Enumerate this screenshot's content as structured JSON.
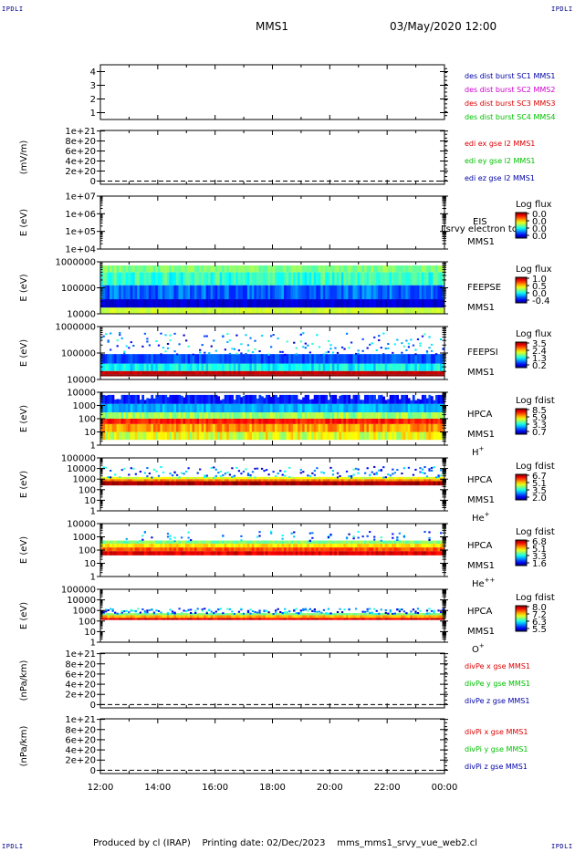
{
  "header": {
    "corner_label": "IPDLI",
    "mission": "MMS1",
    "datetime": "03/May/2020 12:00"
  },
  "footer": {
    "produced_by": "Produced by cl (IRAP)",
    "printing_date": "Printing date: 02/Dec/2023",
    "script_name": "mms_mms1_srvy_vue_web2.cl"
  },
  "colors": {
    "red": "#dd0000",
    "green": "#00c000",
    "blue": "#0000aa",
    "magenta": "#cc00cc"
  },
  "chart_data": [
    {
      "type": "line",
      "panel": "des-dist-burst",
      "ylabel": "",
      "ylim": [
        0.5,
        4.5
      ],
      "y_ticks": [
        "1",
        "2",
        "3",
        "4"
      ],
      "legend": [
        {
          "text": "des dist burst SC1 MMS1",
          "color": "#0000aa"
        },
        {
          "text": "des dist burst SC2 MMS2",
          "color": "#cc00cc"
        },
        {
          "text": "des dist burst SC3 MMS3",
          "color": "#dd0000"
        },
        {
          "text": "des dist burst SC4 MMS4",
          "color": "#00c000"
        }
      ]
    },
    {
      "type": "line",
      "panel": "edi-e-gse",
      "ylabel": "(mV/m)",
      "y_ticks": [
        "0",
        "2e+20",
        "4e+20",
        "6e+20",
        "8e+20",
        "1e+21"
      ],
      "zero_line": true,
      "legend": [
        {
          "text": "edi ex gse l2 MMS1",
          "color": "#dd0000"
        },
        {
          "text": "edi ey gse l2 MMS1",
          "color": "#00c000"
        },
        {
          "text": "edi ez gse l2 MMS1",
          "color": "#0000aa"
        }
      ]
    },
    {
      "type": "heatmap",
      "panel": "eis",
      "ylabel": "E (eV)",
      "scale": "log",
      "ylim": [
        10000,
        10000000
      ],
      "y_ticks": [
        "1e+04",
        "1e+05",
        "1e+06",
        "1e+07"
      ],
      "instrument": "EIS",
      "spacecraft": "MMS1",
      "overlay_text": "Lsrvy electron to",
      "colorbar_title": "Log flux",
      "colorbar_ticks": [
        "0.0",
        "0.0",
        "0.0",
        "0.0"
      ],
      "filled": false
    },
    {
      "type": "heatmap",
      "panel": "feepse",
      "ylabel": "E (eV)",
      "scale": "log",
      "ylim": [
        10000,
        1000000
      ],
      "y_ticks": [
        "10000",
        "100000",
        "1000000"
      ],
      "instrument": "FEEPSE",
      "spacecraft": "MMS1",
      "colorbar_title": "Log flux",
      "colorbar_ticks": [
        "1.0",
        "0.5",
        "0.0",
        "-0.4"
      ],
      "filled": true
    },
    {
      "type": "heatmap",
      "panel": "feepsi",
      "ylabel": "E (eV)",
      "scale": "log",
      "ylim": [
        10000,
        1000000
      ],
      "y_ticks": [
        "10000",
        "100000",
        "1000000"
      ],
      "instrument": "FEEPSI",
      "spacecraft": "MMS1",
      "colorbar_title": "Log flux",
      "colorbar_ticks": [
        "3.5",
        "2.4",
        "1.3",
        "0.2"
      ],
      "filled": true
    },
    {
      "type": "heatmap",
      "panel": "hpca-h",
      "ylabel": "E (eV)",
      "scale": "log",
      "ylim": [
        1,
        10000
      ],
      "y_ticks": [
        "1",
        "10",
        "100",
        "1000",
        "10000"
      ],
      "instrument": "HPCA",
      "spacecraft": "MMS1",
      "species": "H",
      "species_sup": "+",
      "colorbar_title": "Log fdist",
      "colorbar_ticks": [
        "8.5",
        "5.9",
        "3.3",
        "0.7"
      ],
      "filled": true
    },
    {
      "type": "heatmap",
      "panel": "hpca-he",
      "ylabel": "E (eV)",
      "scale": "log",
      "ylim": [
        1,
        100000
      ],
      "y_ticks": [
        "1",
        "10",
        "100",
        "1000",
        "10000",
        "100000"
      ],
      "instrument": "HPCA",
      "spacecraft": "MMS1",
      "species": "He",
      "species_sup": "+",
      "colorbar_title": "Log fdist",
      "colorbar_ticks": [
        "6.7",
        "5.1",
        "3.5",
        "2.0"
      ],
      "filled": true
    },
    {
      "type": "heatmap",
      "panel": "hpca-hepp",
      "ylabel": "E (eV)",
      "scale": "log",
      "ylim": [
        1,
        10000
      ],
      "y_ticks": [
        "1",
        "10",
        "100",
        "1000",
        "10000"
      ],
      "instrument": "HPCA",
      "spacecraft": "MMS1",
      "species": "He",
      "species_sup": "++",
      "colorbar_title": "Log fdist",
      "colorbar_ticks": [
        "6.8",
        "5.1",
        "3.3",
        "1.6"
      ],
      "filled": true
    },
    {
      "type": "heatmap",
      "panel": "hpca-o",
      "ylabel": "E (eV)",
      "scale": "log",
      "ylim": [
        1,
        100000
      ],
      "y_ticks": [
        "1",
        "10",
        "100",
        "1000",
        "10000",
        "100000"
      ],
      "instrument": "HPCA",
      "spacecraft": "MMS1",
      "species": "O",
      "species_sup": "+",
      "colorbar_title": "Log fdist",
      "colorbar_ticks": [
        "8.0",
        "7.2",
        "6.3",
        "5.5"
      ],
      "filled": true
    },
    {
      "type": "line",
      "panel": "divpe",
      "ylabel": "(nPa/km)",
      "y_ticks": [
        "0",
        "2e+20",
        "4e+20",
        "6e+20",
        "8e+20",
        "1e+21"
      ],
      "zero_line": true,
      "legend": [
        {
          "text": "divPe x gse MMS1",
          "color": "#dd0000"
        },
        {
          "text": "divPe y gse MMS1",
          "color": "#00c000"
        },
        {
          "text": "divPe z gse MMS1",
          "color": "#0000aa"
        }
      ]
    },
    {
      "type": "line",
      "panel": "divpi",
      "ylabel": "(nPa/km)",
      "y_ticks": [
        "0",
        "2e+20",
        "4e+20",
        "6e+20",
        "8e+20",
        "1e+21"
      ],
      "zero_line": true,
      "legend": [
        {
          "text": "divPi x gse MMS1",
          "color": "#dd0000"
        },
        {
          "text": "divPi y gse MMS1",
          "color": "#00c000"
        },
        {
          "text": "divPi z gse MMS1",
          "color": "#0000aa"
        }
      ]
    }
  ],
  "time_axis": {
    "tick_labels": [
      "12:00",
      "14:00",
      "16:00",
      "18:00",
      "20:00",
      "22:00",
      "00:00"
    ]
  }
}
